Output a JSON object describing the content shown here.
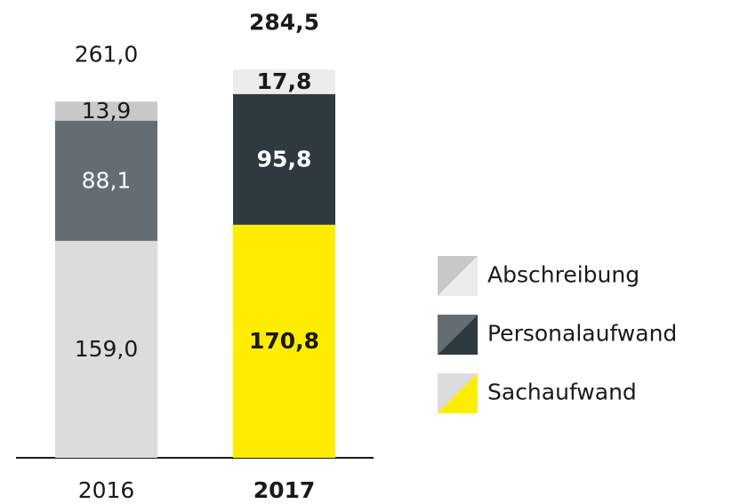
{
  "chart_data": {
    "type": "stacked_bar",
    "categories": [
      "2016",
      "2017"
    ],
    "bold": [
      false,
      true
    ],
    "series": [
      {
        "name": "Sachaufwand",
        "colors": [
          "#dcdcdc",
          "#ffed00"
        ],
        "values": [
          159.0,
          170.8
        ],
        "value_labels": [
          "159,0",
          "170,8"
        ]
      },
      {
        "name": "Personalaufwand",
        "colors": [
          "#646d73",
          "#2e3a40"
        ],
        "values": [
          88.1,
          95.8
        ],
        "value_labels": [
          "88,1",
          "95,8"
        ]
      },
      {
        "name": "Abschreibung",
        "colors": [
          "#c8c8c8",
          "#ececec"
        ],
        "values": [
          13.9,
          17.8
        ],
        "value_labels": [
          "13,9",
          "17,8"
        ]
      }
    ],
    "totals": [
      261.0,
      284.5
    ],
    "total_labels": [
      "261,0",
      "284,5"
    ]
  }
}
